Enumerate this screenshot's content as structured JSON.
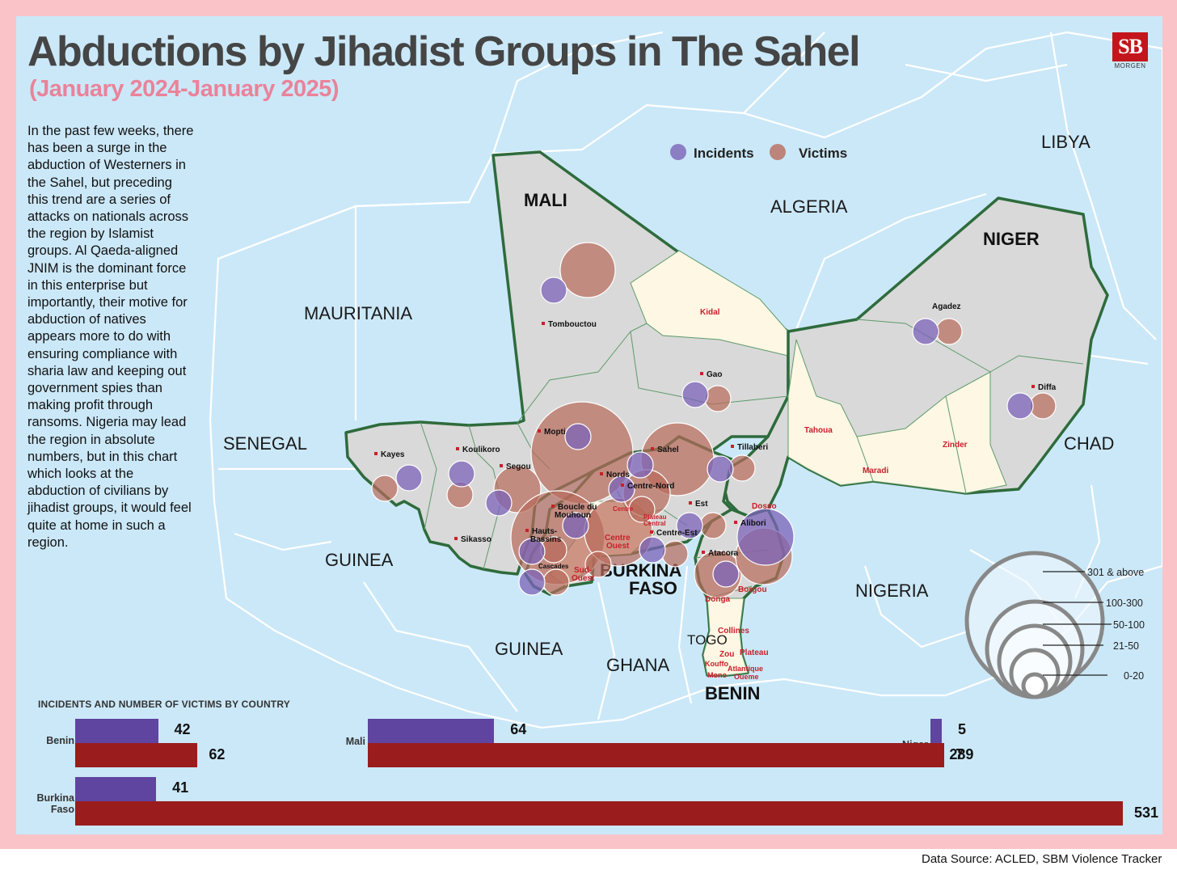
{
  "title": "Abductions by Jihadist Groups in The Sahel",
  "subtitle": "(January 2024-January 2025)",
  "logo": {
    "text": "SB",
    "sub": "MORGEN",
    "color": "#c3161c"
  },
  "intro": "In the past few weeks, there has been a surge in the abduction of Westerners in the Sahel, but preceding this trend are a series of attacks on nationals across the region by Islamist groups. Al Qaeda-aligned JNIM is the dominant force in this enterprise but importantly, their motive for abduction of natives appears more to do with ensuring compliance with sharia law and keeping out government spies than making profit through ransoms. Nigeria may lead the region in absolute numbers, but in this chart which looks at the abduction of civilians by jihadist groups, it would feel quite at home in such a region.",
  "map": {
    "countries_plain": [
      "LIBYA",
      "ALGERIA",
      "MAURITANIA",
      "SENEGAL",
      "CHAD",
      "GUINEA",
      "GUINEA",
      "NIGERIA",
      "GHANA"
    ],
    "countries_focus": [
      "MALI",
      "NIGER",
      "BURKINA",
      "FASO",
      "BENIN"
    ],
    "togo": "TOGO",
    "regions_black": [
      "Tombouctou",
      "Gao",
      "Agadez",
      "Diffa",
      "Kayes",
      "Koulikoro",
      "Segou",
      "Mopti",
      "Sahel",
      "Tillaberi",
      "Nords",
      "Centre-Nord",
      "Boucle du",
      "Mouhoun",
      "Est",
      "Hauts-",
      "Bassins",
      "Centre-Est",
      "Sikasso",
      "Alibori",
      "Atacora",
      "Cascades"
    ],
    "regions_red": [
      "Kidal",
      "Tahoua",
      "Zinder",
      "Maradi",
      "Dosso",
      "Centre",
      "Plateau",
      "Central",
      "Centre",
      "Ouest",
      "Sud-",
      "Ouest",
      "Borgou",
      "Donga",
      "Collines",
      "Zou",
      "Plateau",
      "Kouffo",
      "Mono",
      "Atlantique",
      "Oueme"
    ],
    "colors": {
      "incidents": "#7b63b8",
      "victims": "#b86a5a",
      "focus_fill": "#d9d9d9",
      "focus_border": "#2e6b3c",
      "sea": "#cbe8f8",
      "region_light": "#fdf7e4"
    }
  },
  "legend": {
    "incidents": "Incidents",
    "victims": "Victims"
  },
  "size_scale": [
    "301 & above",
    "100-300",
    "50-100",
    "21-50",
    "0-20"
  ],
  "chart_data": {
    "type": "bar",
    "title": "INCIDENTS AND NUMBER OF VICTIMS BY COUNTRY",
    "categories": [
      "Benin",
      "Mali",
      "Niger",
      "Burkina Faso"
    ],
    "series": [
      {
        "name": "Incidents",
        "values": [
          42,
          64,
          5,
          41
        ]
      },
      {
        "name": "Victims",
        "values": [
          62,
          289,
          7,
          531
        ]
      }
    ],
    "labels": {
      "benin": "Benin",
      "mali": "Mali",
      "niger": "Niger",
      "burkina_l1": "Burkina",
      "burkina_l2": "Faso"
    },
    "colors": {
      "incidents": "#6045a0",
      "victims": "#9b1c1c"
    }
  },
  "source": "Data Source: ACLED, SBM Violence Tracker"
}
